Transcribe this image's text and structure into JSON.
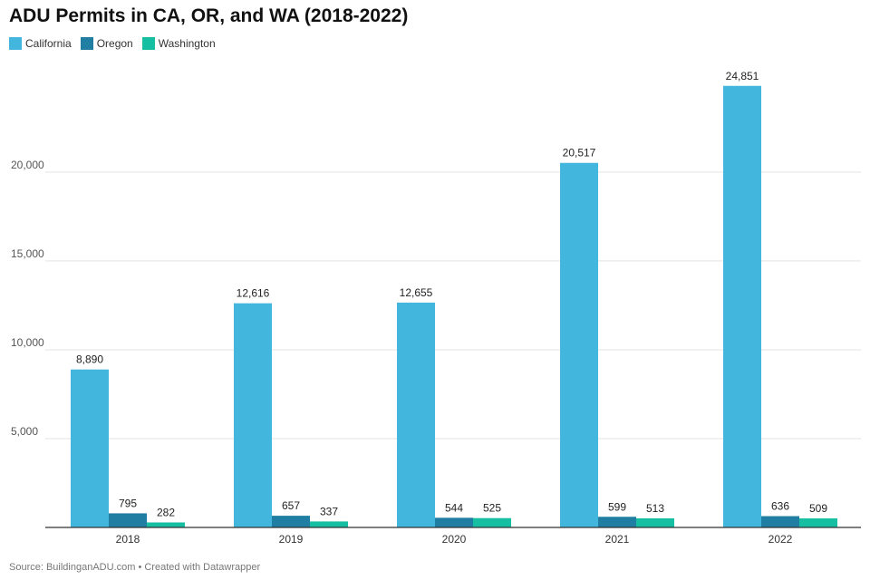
{
  "header": {
    "title": "ADU Permits in CA, OR, and WA (2018-2022)"
  },
  "legend": [
    {
      "label": "California",
      "color": "#42b6dc"
    },
    {
      "label": "Oregon",
      "color": "#1f7ea1"
    },
    {
      "label": "Washington",
      "color": "#16bfa1"
    }
  ],
  "footer": {
    "source": "Source: BuildinganADU.com • Created with Datawrapper"
  },
  "chart_data": {
    "type": "bar",
    "title": "ADU Permits in CA, OR, and WA (2018-2022)",
    "categories": [
      "2018",
      "2019",
      "2020",
      "2021",
      "2022"
    ],
    "series": [
      {
        "name": "California",
        "color": "#42b6dc",
        "values": [
          8890,
          12616,
          12655,
          20517,
          24851
        ],
        "labels": [
          "8,890",
          "12,616",
          "12,655",
          "20,517",
          "24,851"
        ]
      },
      {
        "name": "Oregon",
        "color": "#1f7ea1",
        "values": [
          795,
          657,
          544,
          599,
          636
        ],
        "labels": [
          "795",
          "657",
          "544",
          "599",
          "636"
        ]
      },
      {
        "name": "Washington",
        "color": "#16bfa1",
        "values": [
          282,
          337,
          525,
          513,
          509
        ],
        "labels": [
          "282",
          "337",
          "525",
          "513",
          "509"
        ]
      }
    ],
    "yticks": [
      5000,
      10000,
      15000,
      20000
    ],
    "ytick_labels": [
      "5,000",
      "10,000",
      "15,000",
      "20,000"
    ],
    "ylim": [
      0,
      25000
    ],
    "xlabel": "",
    "ylabel": "",
    "grid": true,
    "legend_position": "top-left"
  }
}
